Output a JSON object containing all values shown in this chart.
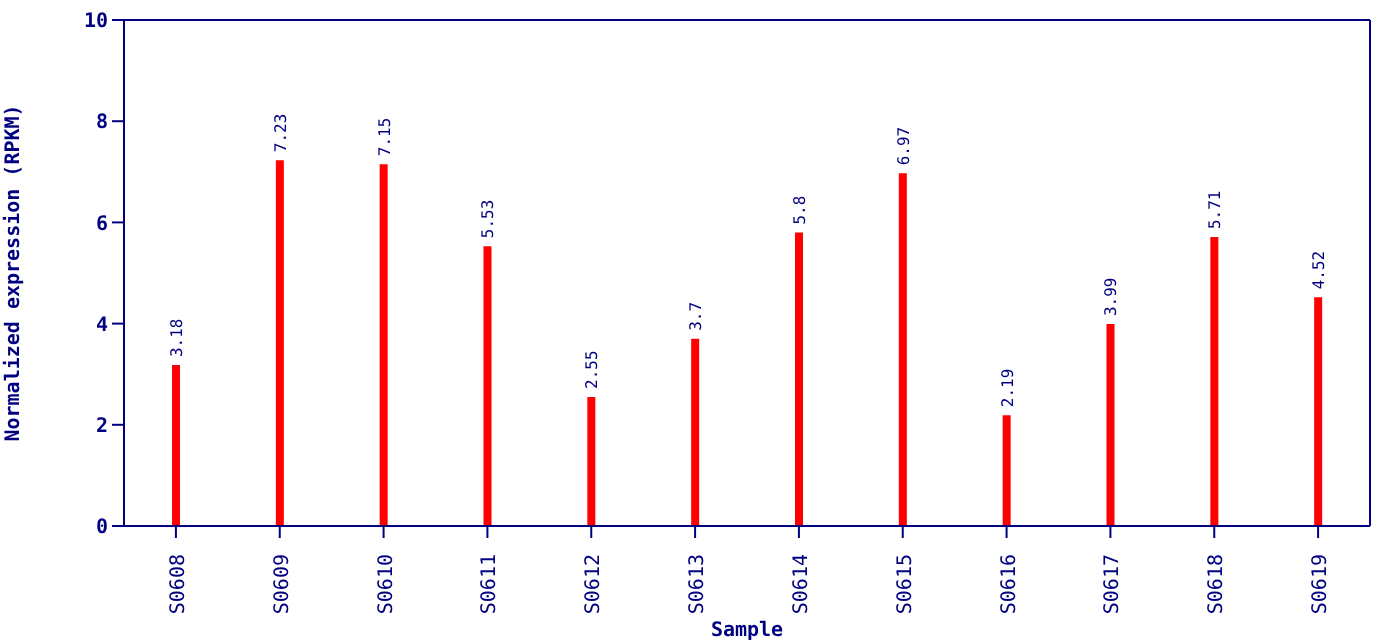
{
  "chart_data": {
    "type": "bar",
    "xlabel": "Sample",
    "ylabel": "Normalized expression (RPKM)",
    "categories": [
      "S0608",
      "S0609",
      "S0610",
      "S0611",
      "S0612",
      "S0613",
      "S0614",
      "S0615",
      "S0616",
      "S0617",
      "S0618",
      "S0619"
    ],
    "values": [
      3.18,
      7.23,
      7.15,
      5.53,
      2.55,
      3.7,
      5.8,
      6.97,
      2.19,
      3.99,
      5.71,
      4.52
    ],
    "color": "#ff0000",
    "ylim": [
      0,
      10
    ],
    "yticks": [
      0,
      2,
      4,
      6,
      8,
      10
    ],
    "grid": false,
    "data_labels": true
  }
}
